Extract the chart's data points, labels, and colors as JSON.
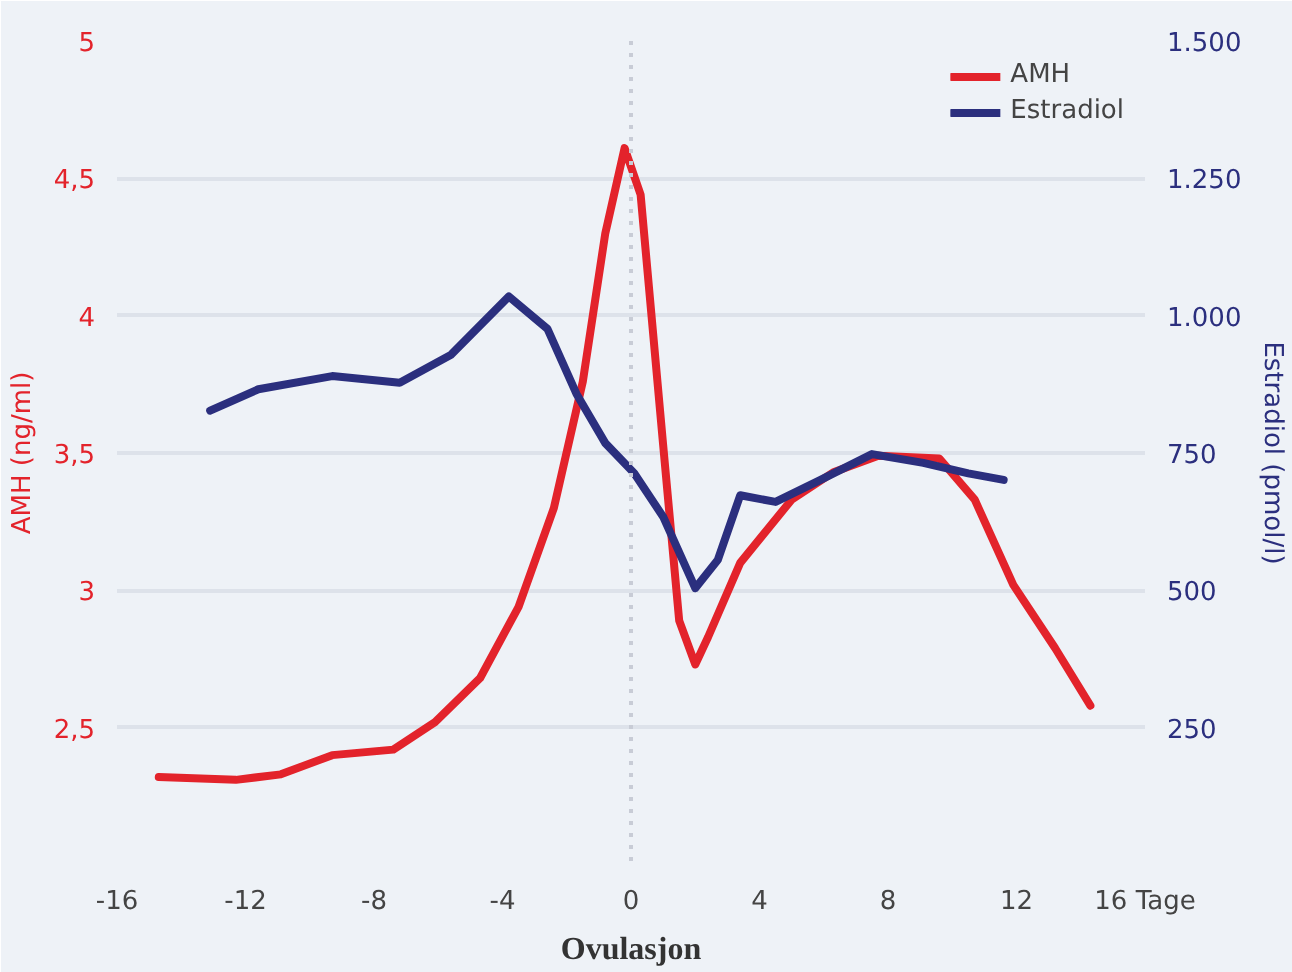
{
  "chart_data": {
    "type": "line",
    "xlabel": "Ovulasjon",
    "ylabel": "AMH (ng/ml)",
    "y2label": "Estradiol (pmol/l)",
    "xlim": [
      -16,
      16
    ],
    "xticks": [
      -16,
      -12,
      -8,
      -4,
      0,
      4,
      8,
      12,
      {
        "value": 16,
        "label": "16 Tage"
      }
    ],
    "ylim": [
      2,
      5
    ],
    "yticks": [
      {
        "value": 2,
        "label": null
      },
      {
        "value": 2.5,
        "label": "2,5"
      },
      3,
      {
        "value": 3.5,
        "label": "3,5"
      },
      4,
      {
        "value": 4.5,
        "label": "4,5"
      },
      5
    ],
    "y2lim": [
      0,
      1500
    ],
    "y2ticks": [
      {
        "value": 0,
        "label": null
      },
      250,
      500,
      750,
      {
        "value": 1000,
        "label": "1.000"
      },
      {
        "value": 1250,
        "label": "1.250"
      },
      {
        "value": 1500,
        "label": "1.500"
      }
    ],
    "grid": "y",
    "legend": "top right",
    "line_style": "solid",
    "ref_lines": [
      {
        "axis": "x",
        "value": 0,
        "label": null,
        "color": "#c8ccd6",
        "line_style": "dotted"
      }
    ],
    "series": [
      {
        "name": "AMH",
        "color": "#e3232b",
        "x": [
          -14.7,
          -12.3,
          -10.9,
          -9.3,
          -7.4,
          -6.1,
          -4.7,
          -3.5,
          -2.4,
          -1.5,
          -0.8,
          -0.2,
          0.3,
          1.0,
          1.5,
          2.0,
          2.4,
          3.4,
          5.0,
          6.3,
          7.7,
          9.6,
          10.7,
          11.9,
          13.2,
          14.3
        ],
        "values": [
          2.32,
          2.31,
          2.33,
          2.4,
          2.42,
          2.52,
          2.68,
          2.94,
          3.3,
          3.76,
          4.3,
          4.61,
          4.44,
          3.53,
          2.89,
          2.73,
          2.83,
          3.1,
          3.33,
          3.43,
          3.49,
          3.48,
          3.33,
          3.02,
          2.79,
          2.58
        ]
      },
      {
        "name": "Estradiol",
        "color": "#2b2f7e",
        "axis": "y2",
        "x": [
          -13.1,
          -11.6,
          -9.3,
          -7.2,
          -5.6,
          -3.8,
          -2.6,
          -1.7,
          -0.8,
          0.1,
          1.0,
          2.0,
          2.7,
          3.4,
          4.5,
          5.9,
          7.5,
          9.1,
          10.5,
          11.6
        ],
        "values": [
          827,
          866,
          890,
          878,
          929,
          1035,
          976,
          858,
          768,
          713,
          634,
          504,
          555,
          673,
          661,
          701,
          748,
          732,
          713,
          701
        ]
      }
    ]
  }
}
